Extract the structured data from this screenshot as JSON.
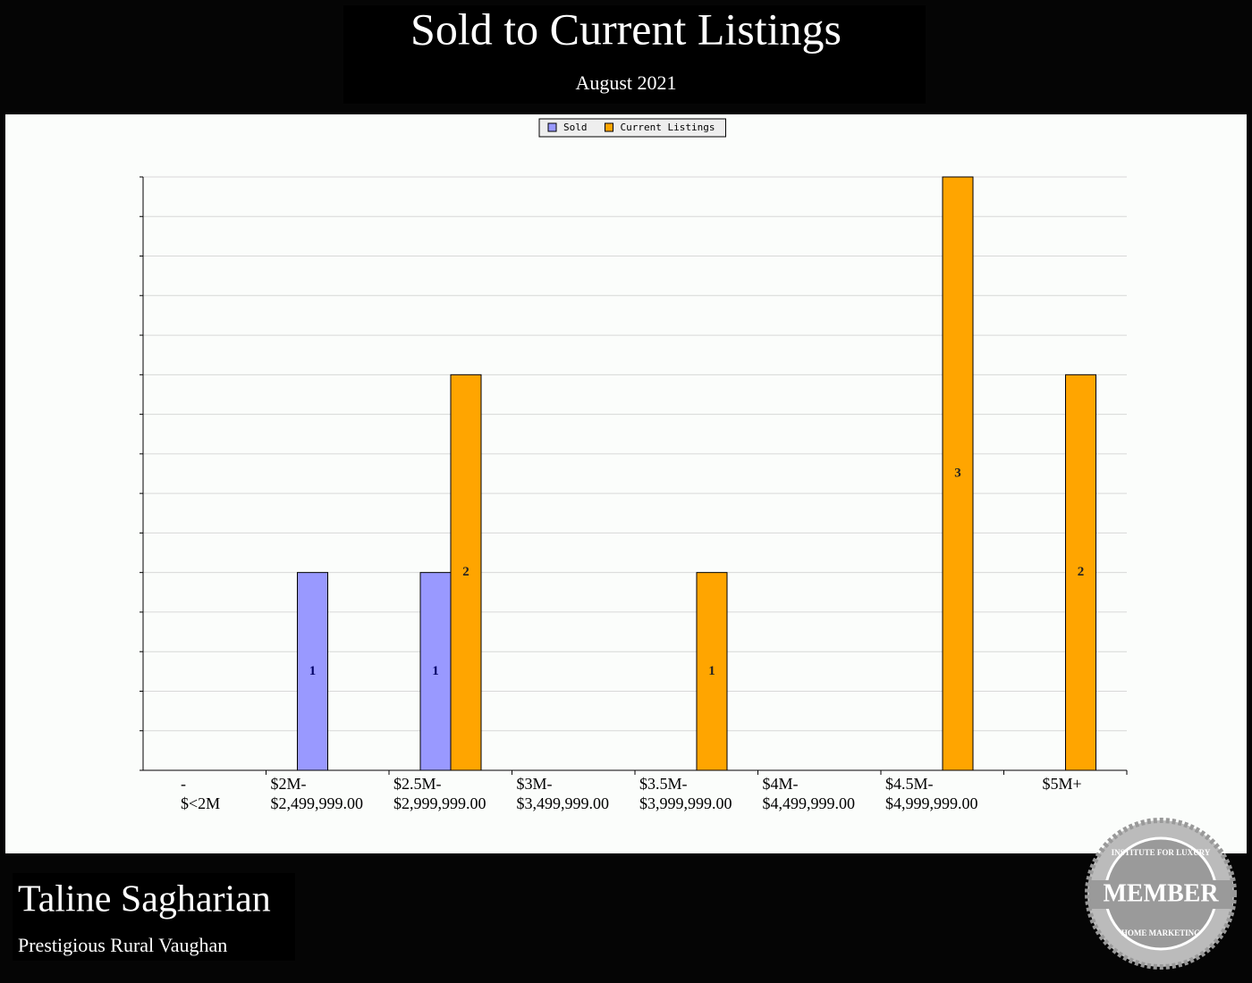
{
  "chart_data": {
    "type": "bar",
    "title": "Sold to Current Listings",
    "subtitle": "August 2021",
    "categories": [
      [
        "-",
        "$<2M"
      ],
      [
        "$2M-",
        "$2,499,999.00"
      ],
      [
        "$2.5M-",
        "$2,999,999.00"
      ],
      [
        "$3M-",
        "$3,499,999.00"
      ],
      [
        "$3.5M-",
        "$3,999,999.00"
      ],
      [
        "$4M-",
        "$4,499,999.00"
      ],
      [
        "$4.5M-",
        "$4,999,999.00"
      ],
      [
        "$5M+"
      ]
    ],
    "series": [
      {
        "name": "Sold",
        "color": "#9999ff",
        "values": [
          null,
          1,
          1,
          null,
          null,
          null,
          null,
          null
        ]
      },
      {
        "name": "Current Listings",
        "color": "#ffa500",
        "values": [
          null,
          null,
          2,
          null,
          1,
          null,
          3,
          2
        ]
      }
    ],
    "ylim": [
      0,
      3
    ],
    "yticks": [
      0,
      0.2,
      0.4,
      0.6,
      0.8,
      1,
      1.2,
      1.4,
      1.6,
      1.8,
      2,
      2.2,
      2.4,
      2.6,
      2.8,
      3
    ],
    "grid": true,
    "legend": "top"
  },
  "footer": {
    "name": "Taline Sagharian",
    "area": "Prestigious Rural Vaughan"
  },
  "badge": {
    "top": "INSTITUTE FOR LUXURY",
    "main": "MEMBER",
    "bottom": "HOME MARKETING"
  }
}
